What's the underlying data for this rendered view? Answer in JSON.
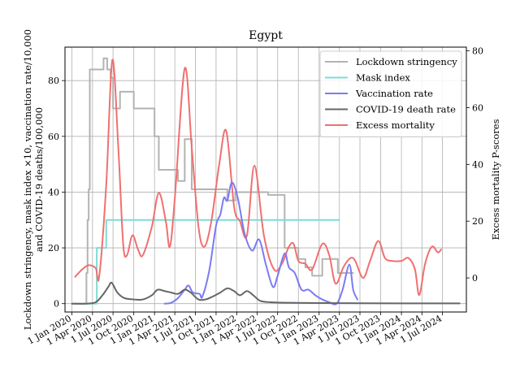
{
  "chart_data": {
    "type": "line",
    "title": "Egypt",
    "ylabel_left_line1": "Lockdown stringency, mask index ×10, vaccination rate/10,000",
    "ylabel_left_line2": "and COVID-19 deaths/100,000",
    "ylabel_right": "Excess mortality P-scores",
    "xlabel": "",
    "x_start": "2019-12-01",
    "x_end": "2024-10-15",
    "ylim_left": [
      -3,
      92
    ],
    "ylim_right": [
      -12,
      81.3
    ],
    "grid": true,
    "legend_position": "top-right",
    "x_ticks": [
      "2020-01-01",
      "2020-04-01",
      "2020-07-01",
      "2020-10-01",
      "2021-01-01",
      "2021-04-01",
      "2021-07-01",
      "2021-10-01",
      "2022-01-01",
      "2022-04-01",
      "2022-07-01",
      "2022-10-01",
      "2023-01-01",
      "2023-04-01",
      "2023-07-01",
      "2023-10-01",
      "2024-01-01",
      "2024-04-01",
      "2024-07-01"
    ],
    "x_tick_labels": [
      "1 Jan 2020",
      "1 Apr 2020",
      "1 Jul 2020",
      "1 Oct 2020",
      "1 Jan 2021",
      "1 Apr 2021",
      "1 Jul 2021",
      "1 Oct 2021",
      "1 Jan 2022",
      "1 Apr 2022",
      "1 Jul 2022",
      "1 Oct 2022",
      "1 Jan 2023",
      "1 Apr 2023",
      "1 Jul 2023",
      "1 Oct 2023",
      "1 Jan 2024",
      "1 Apr 2024",
      "1 Jul 2024"
    ],
    "y_ticks_left": [
      0,
      20,
      40,
      60,
      80
    ],
    "y_tick_labels_left": [
      "0",
      "20",
      "40",
      "60",
      "80"
    ],
    "y_ticks_right": [
      0,
      20,
      40,
      60,
      80
    ],
    "y_tick_labels_right": [
      "0",
      "20",
      "40",
      "60",
      "80"
    ],
    "series": [
      {
        "name": "Lockdown stringency",
        "color": "#b3b3b3",
        "axis": "left",
        "step": true,
        "points": [
          [
            "2020-01-01",
            0
          ],
          [
            "2020-02-25",
            0
          ],
          [
            "2020-03-05",
            11
          ],
          [
            "2020-03-10",
            30
          ],
          [
            "2020-03-15",
            41
          ],
          [
            "2020-03-20",
            84
          ],
          [
            "2020-05-15",
            84
          ],
          [
            "2020-05-20",
            88
          ],
          [
            "2020-06-05",
            84
          ],
          [
            "2020-06-20",
            81
          ],
          [
            "2020-07-01",
            70
          ],
          [
            "2020-08-01",
            76
          ],
          [
            "2020-10-01",
            70
          ],
          [
            "2020-12-15",
            70
          ],
          [
            "2021-01-01",
            60
          ],
          [
            "2021-01-20",
            48
          ],
          [
            "2021-04-10",
            48
          ],
          [
            "2021-04-15",
            44
          ],
          [
            "2021-05-15",
            59
          ],
          [
            "2021-06-15",
            41
          ],
          [
            "2021-11-15",
            41
          ],
          [
            "2021-11-20",
            37
          ],
          [
            "2021-12-25",
            40
          ],
          [
            "2022-05-15",
            40
          ],
          [
            "2022-05-20",
            39
          ],
          [
            "2022-07-31",
            39
          ],
          [
            "2022-08-01",
            20
          ],
          [
            "2022-10-01",
            16
          ],
          [
            "2022-11-01",
            13
          ],
          [
            "2022-12-01",
            10
          ],
          [
            "2023-01-15",
            16
          ],
          [
            "2023-03-20",
            16
          ],
          [
            "2023-03-25",
            11
          ],
          [
            "2023-06-01",
            11
          ]
        ]
      },
      {
        "name": "Mask index",
        "color": "#7fdbd5",
        "axis": "left",
        "step": true,
        "points": [
          [
            "2020-01-01",
            0
          ],
          [
            "2020-04-15",
            0
          ],
          [
            "2020-04-20",
            20
          ],
          [
            "2020-06-01",
            30
          ],
          [
            "2023-03-31",
            30
          ]
        ]
      },
      {
        "name": "Vaccination rate",
        "color": "#7b7bf2",
        "axis": "left",
        "step": false,
        "points": [
          [
            "2021-02-15",
            0
          ],
          [
            "2021-03-15",
            0.3
          ],
          [
            "2021-04-15",
            2
          ],
          [
            "2021-05-15",
            5
          ],
          [
            "2021-06-01",
            6.5
          ],
          [
            "2021-06-20",
            4
          ],
          [
            "2021-07-20",
            3.5
          ],
          [
            "2021-08-01",
            2.5
          ],
          [
            "2021-09-01",
            12
          ],
          [
            "2021-10-01",
            28
          ],
          [
            "2021-10-20",
            32
          ],
          [
            "2021-11-05",
            38
          ],
          [
            "2021-11-20",
            37
          ],
          [
            "2021-12-10",
            43.5
          ],
          [
            "2022-01-05",
            38
          ],
          [
            "2022-02-05",
            25
          ],
          [
            "2022-03-10",
            19
          ],
          [
            "2022-04-10",
            23
          ],
          [
            "2022-05-10",
            14
          ],
          [
            "2022-06-10",
            6
          ],
          [
            "2022-07-01",
            10
          ],
          [
            "2022-08-01",
            18
          ],
          [
            "2022-08-20",
            13
          ],
          [
            "2022-09-15",
            11
          ],
          [
            "2022-10-15",
            5
          ],
          [
            "2022-11-15",
            5
          ],
          [
            "2022-12-15",
            3
          ],
          [
            "2023-01-15",
            1.5
          ],
          [
            "2023-02-15",
            0.5
          ],
          [
            "2023-03-20",
            0
          ],
          [
            "2023-04-15",
            5
          ],
          [
            "2023-05-15",
            14
          ],
          [
            "2023-06-01",
            5
          ],
          [
            "2023-06-20",
            1.5
          ]
        ]
      },
      {
        "name": "COVID-19 death rate",
        "color": "#666666",
        "axis": "left",
        "step": false,
        "points": [
          [
            "2020-01-01",
            0
          ],
          [
            "2020-03-01",
            0
          ],
          [
            "2020-04-15",
            0.5
          ],
          [
            "2020-05-15",
            3
          ],
          [
            "2020-06-10",
            6
          ],
          [
            "2020-06-25",
            7.5
          ],
          [
            "2020-07-20",
            4
          ],
          [
            "2020-08-20",
            2
          ],
          [
            "2020-10-01",
            1.5
          ],
          [
            "2020-11-10",
            1.5
          ],
          [
            "2020-12-20",
            3
          ],
          [
            "2021-01-15",
            5
          ],
          [
            "2021-02-15",
            4.5
          ],
          [
            "2021-03-15",
            4
          ],
          [
            "2021-04-15",
            3.5
          ],
          [
            "2021-05-15",
            5
          ],
          [
            "2021-06-10",
            4
          ],
          [
            "2021-07-15",
            1.5
          ],
          [
            "2021-08-15",
            1.5
          ],
          [
            "2021-09-15",
            2.5
          ],
          [
            "2021-10-20",
            4
          ],
          [
            "2021-11-20",
            5.5
          ],
          [
            "2021-12-20",
            4.5
          ],
          [
            "2022-01-15",
            3
          ],
          [
            "2022-02-15",
            4.5
          ],
          [
            "2022-03-15",
            3
          ],
          [
            "2022-04-15",
            1
          ],
          [
            "2022-06-01",
            0.5
          ],
          [
            "2022-09-01",
            0.3
          ],
          [
            "2023-01-01",
            0.2
          ],
          [
            "2024-01-01",
            0.1
          ],
          [
            "2024-09-15",
            0.1
          ]
        ]
      },
      {
        "name": "Excess mortality",
        "color": "#f07070",
        "axis": "right",
        "step": false,
        "points": [
          [
            "2020-01-15",
            0.4
          ],
          [
            "2020-02-15",
            3
          ],
          [
            "2020-03-15",
            4.5
          ],
          [
            "2020-04-15",
            3.5
          ],
          [
            "2020-05-01",
            0.7
          ],
          [
            "2020-06-01",
            33
          ],
          [
            "2020-06-28",
            76.8
          ],
          [
            "2020-07-25",
            45
          ],
          [
            "2020-08-15",
            12
          ],
          [
            "2020-09-01",
            8
          ],
          [
            "2020-09-25",
            15
          ],
          [
            "2020-10-20",
            10
          ],
          [
            "2020-11-10",
            8
          ],
          [
            "2020-12-20",
            18
          ],
          [
            "2021-01-20",
            30
          ],
          [
            "2021-02-20",
            20
          ],
          [
            "2021-03-10",
            11
          ],
          [
            "2021-04-01",
            28
          ],
          [
            "2021-05-15",
            73.8
          ],
          [
            "2021-06-15",
            46
          ],
          [
            "2021-07-15",
            18
          ],
          [
            "2021-08-10",
            11
          ],
          [
            "2021-09-10",
            20
          ],
          [
            "2021-10-15",
            40
          ],
          [
            "2021-11-15",
            51.8
          ],
          [
            "2021-12-20",
            25
          ],
          [
            "2022-01-15",
            20
          ],
          [
            "2022-02-15",
            15
          ],
          [
            "2022-03-20",
            39.5
          ],
          [
            "2022-05-01",
            15
          ],
          [
            "2022-06-15",
            3
          ],
          [
            "2022-07-20",
            5
          ],
          [
            "2022-08-20",
            11
          ],
          [
            "2022-09-10",
            12
          ],
          [
            "2022-10-01",
            6
          ],
          [
            "2022-11-01",
            5
          ],
          [
            "2022-12-01",
            3
          ],
          [
            "2023-01-15",
            12
          ],
          [
            "2023-02-15",
            8
          ],
          [
            "2023-03-15",
            -2
          ],
          [
            "2023-04-20",
            4
          ],
          [
            "2023-05-20",
            7
          ],
          [
            "2023-06-10",
            6
          ],
          [
            "2023-07-15",
            0
          ],
          [
            "2023-08-15",
            6
          ],
          [
            "2023-09-20",
            13
          ],
          [
            "2023-10-20",
            7
          ],
          [
            "2023-11-20",
            6
          ],
          [
            "2024-01-01",
            6
          ],
          [
            "2024-02-01",
            7
          ],
          [
            "2024-03-01",
            3
          ],
          [
            "2024-03-20",
            -6
          ],
          [
            "2024-04-15",
            5
          ],
          [
            "2024-05-15",
            11
          ],
          [
            "2024-06-10",
            9
          ],
          [
            "2024-06-25",
            10
          ]
        ]
      }
    ]
  }
}
